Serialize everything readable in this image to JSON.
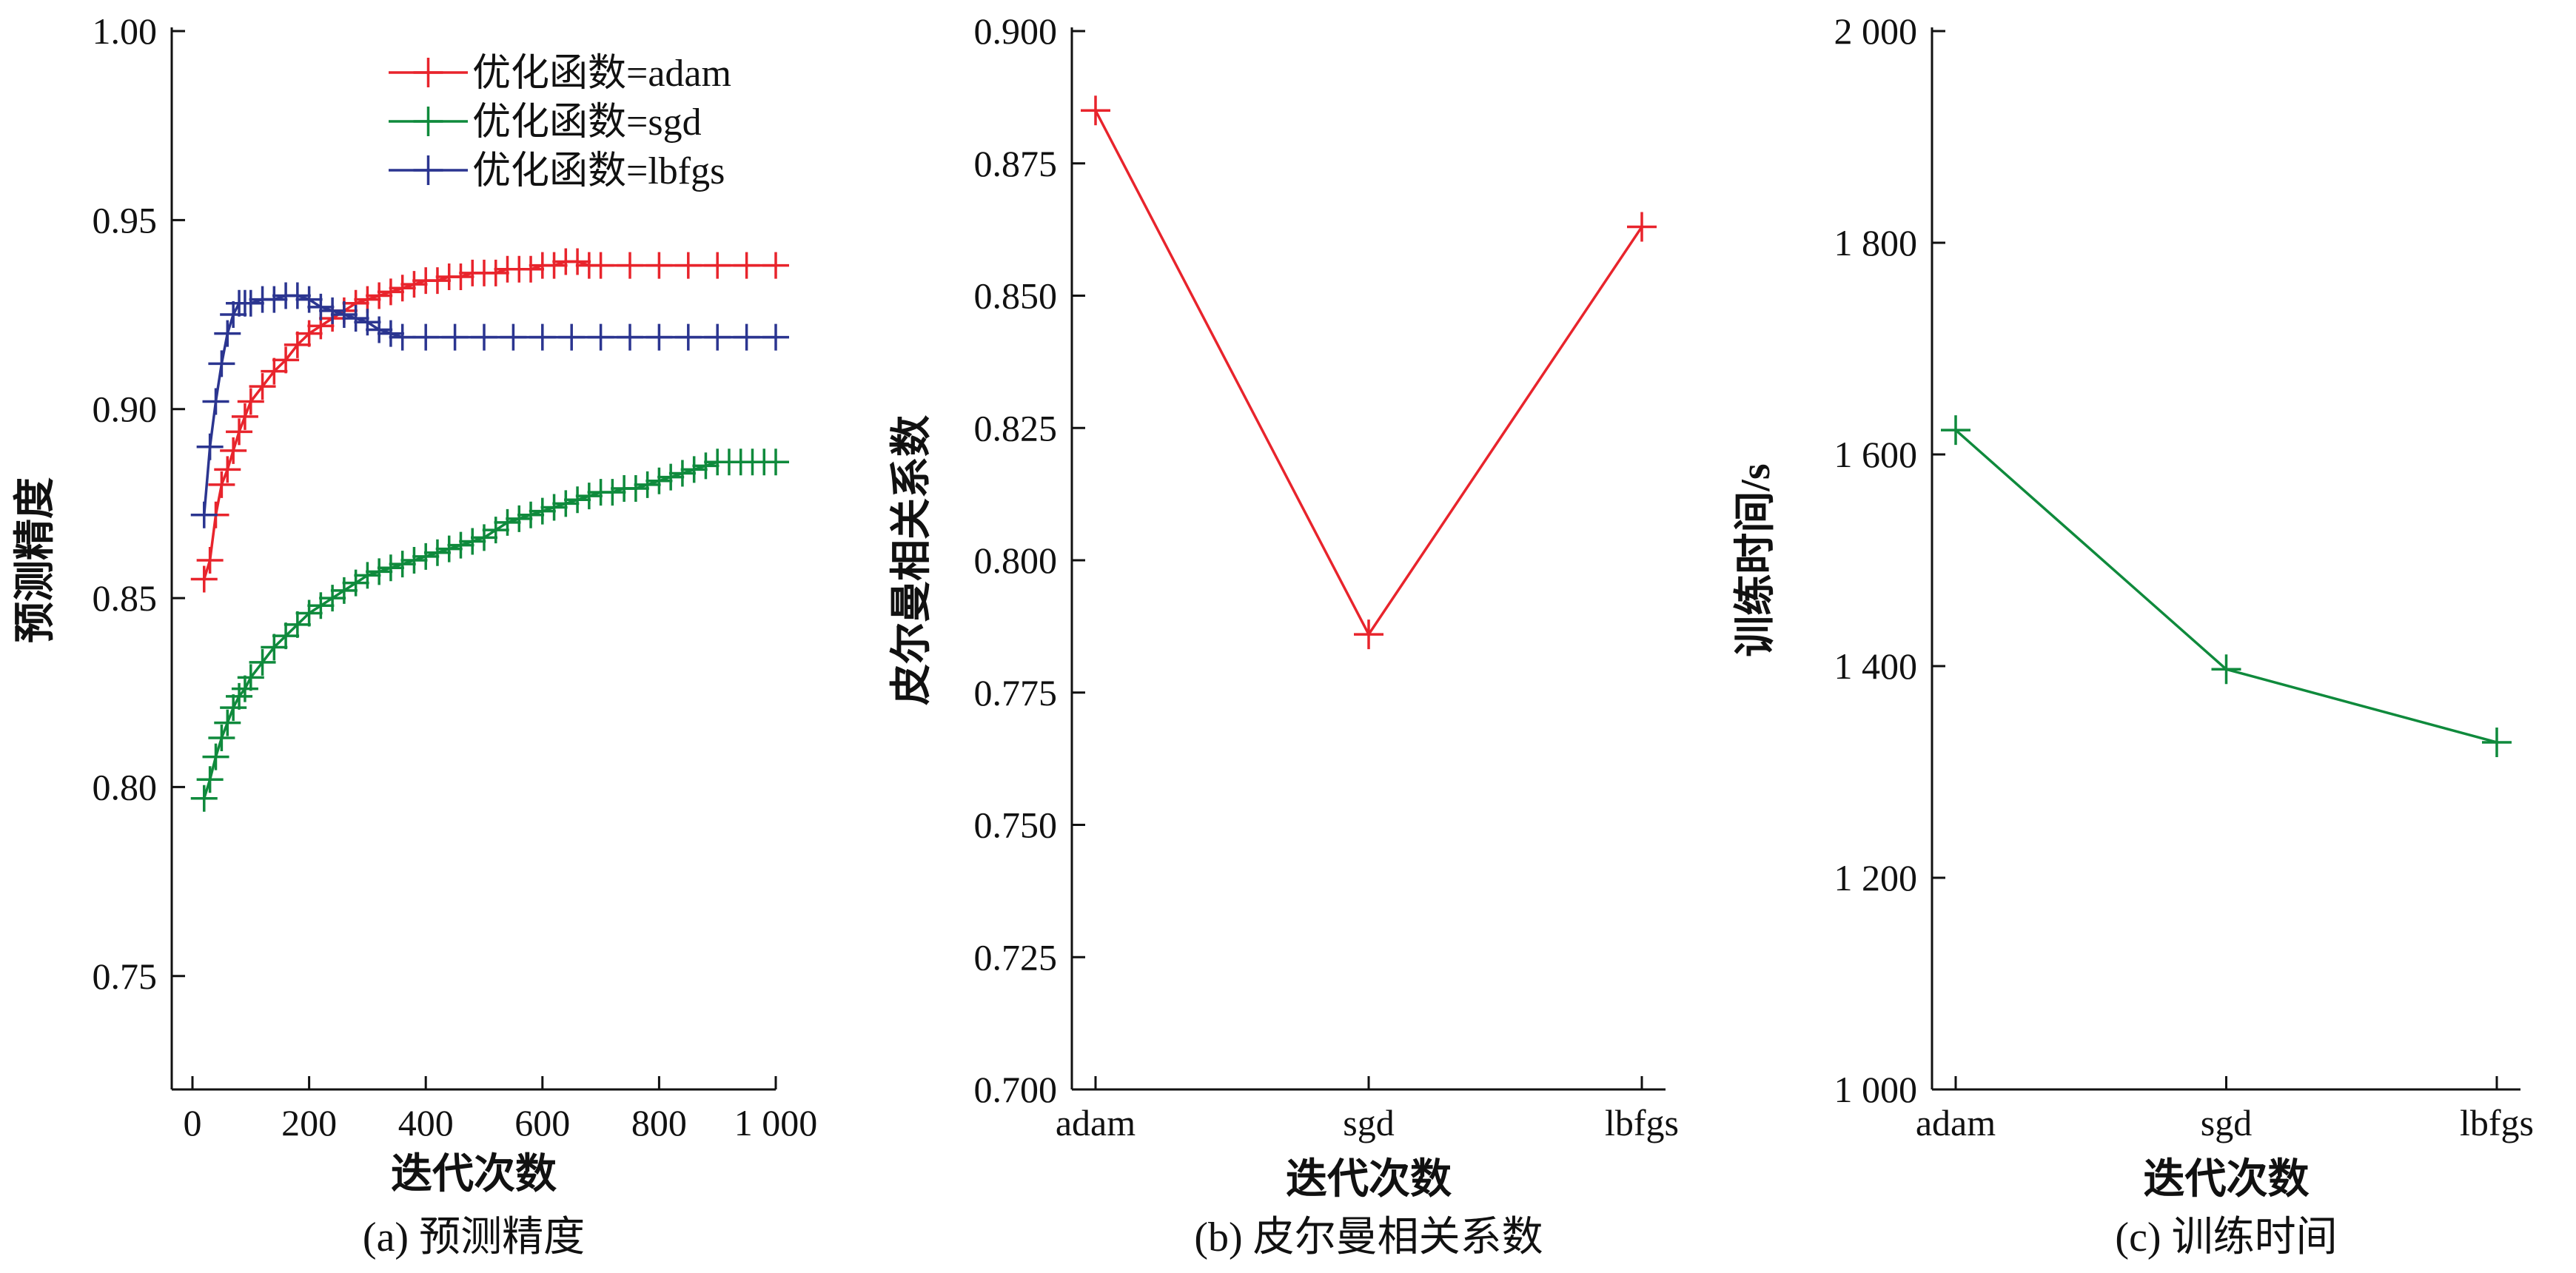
{
  "colors": {
    "adam": "#e8242c",
    "sgd": "#0f8a3c",
    "lbfgs": "#2b3590",
    "axis": "#111111"
  },
  "chart_data": [
    {
      "type": "line",
      "caption": "(a) 预测精度",
      "xlabel": "迭代次数",
      "ylabel": "预测精度",
      "xlim": [
        0,
        1000
      ],
      "ylim": [
        0.72,
        1.0
      ],
      "xticks": [
        0,
        200,
        400,
        600,
        800,
        1000
      ],
      "xtick_labels": [
        "0",
        "200",
        "400",
        "600",
        "800",
        "1 000"
      ],
      "yticks": [
        0.75,
        0.8,
        0.85,
        0.9,
        0.95,
        1.0
      ],
      "ytick_labels": [
        "0.75",
        "0.80",
        "0.85",
        "0.90",
        "0.95",
        "1.00"
      ],
      "legend_position": "top-right",
      "series": [
        {
          "name": "优化函数=adam",
          "color_key": "adam",
          "x": [
            20,
            30,
            40,
            50,
            60,
            70,
            80,
            90,
            100,
            120,
            140,
            160,
            180,
            200,
            220,
            240,
            260,
            280,
            300,
            320,
            340,
            360,
            380,
            400,
            420,
            440,
            460,
            480,
            500,
            520,
            540,
            560,
            580,
            600,
            620,
            640,
            660,
            680,
            700,
            750,
            800,
            850,
            900,
            950,
            1000
          ],
          "y": [
            0.855,
            0.86,
            0.872,
            0.88,
            0.884,
            0.889,
            0.894,
            0.898,
            0.902,
            0.906,
            0.91,
            0.913,
            0.917,
            0.92,
            0.922,
            0.924,
            0.926,
            0.928,
            0.929,
            0.93,
            0.931,
            0.932,
            0.933,
            0.934,
            0.934,
            0.935,
            0.935,
            0.936,
            0.936,
            0.936,
            0.937,
            0.937,
            0.937,
            0.938,
            0.938,
            0.939,
            0.939,
            0.938,
            0.938,
            0.938,
            0.938,
            0.938,
            0.938,
            0.938,
            0.938
          ]
        },
        {
          "name": "优化函数=sgd",
          "color_key": "sgd",
          "x": [
            20,
            30,
            40,
            50,
            60,
            70,
            80,
            90,
            100,
            120,
            140,
            160,
            180,
            200,
            220,
            240,
            260,
            280,
            300,
            320,
            340,
            360,
            380,
            400,
            420,
            440,
            460,
            480,
            500,
            520,
            540,
            560,
            580,
            600,
            620,
            640,
            660,
            680,
            700,
            720,
            740,
            760,
            780,
            800,
            820,
            840,
            860,
            880,
            900,
            920,
            940,
            960,
            980,
            1000
          ],
          "y": [
            0.797,
            0.802,
            0.808,
            0.813,
            0.817,
            0.821,
            0.824,
            0.826,
            0.829,
            0.833,
            0.837,
            0.84,
            0.843,
            0.846,
            0.848,
            0.85,
            0.852,
            0.854,
            0.856,
            0.857,
            0.858,
            0.859,
            0.86,
            0.861,
            0.862,
            0.863,
            0.864,
            0.865,
            0.866,
            0.868,
            0.87,
            0.871,
            0.872,
            0.873,
            0.874,
            0.875,
            0.876,
            0.877,
            0.878,
            0.878,
            0.879,
            0.879,
            0.88,
            0.881,
            0.882,
            0.883,
            0.884,
            0.885,
            0.886,
            0.886,
            0.886,
            0.886,
            0.886,
            0.886
          ]
        },
        {
          "name": "优化函数=lbfgs",
          "color_key": "lbfgs",
          "x": [
            20,
            30,
            40,
            50,
            60,
            70,
            80,
            90,
            100,
            120,
            140,
            160,
            180,
            200,
            220,
            240,
            260,
            280,
            300,
            320,
            340,
            360,
            400,
            450,
            500,
            550,
            600,
            650,
            700,
            750,
            800,
            850,
            900,
            950,
            1000
          ],
          "y": [
            0.872,
            0.89,
            0.902,
            0.912,
            0.92,
            0.925,
            0.928,
            0.928,
            0.928,
            0.929,
            0.929,
            0.93,
            0.93,
            0.929,
            0.927,
            0.926,
            0.925,
            0.924,
            0.923,
            0.921,
            0.92,
            0.919,
            0.919,
            0.919,
            0.919,
            0.919,
            0.919,
            0.919,
            0.919,
            0.919,
            0.919,
            0.919,
            0.919,
            0.919,
            0.919
          ]
        }
      ]
    },
    {
      "type": "line",
      "caption": "(b) 皮尔曼相关系数",
      "xlabel": "迭代次数",
      "ylabel": "皮尔曼相关系数",
      "categories": [
        "adam",
        "sgd",
        "lbfgs"
      ],
      "ylim": [
        0.7,
        0.9
      ],
      "yticks": [
        0.7,
        0.725,
        0.75,
        0.775,
        0.8,
        0.825,
        0.85,
        0.875,
        0.9
      ],
      "ytick_labels": [
        "0.700",
        "0.725",
        "0.750",
        "0.775",
        "0.800",
        "0.825",
        "0.850",
        "0.875",
        "0.900"
      ],
      "series": [
        {
          "color_key": "adam",
          "values": [
            0.885,
            0.786,
            0.863
          ]
        }
      ]
    },
    {
      "type": "line",
      "caption": "(c) 训练时间",
      "xlabel": "迭代次数",
      "ylabel": "训练时间/s",
      "categories": [
        "adam",
        "sgd",
        "lbfgs"
      ],
      "ylim": [
        1000,
        2000
      ],
      "yticks": [
        1000,
        1200,
        1400,
        1600,
        1800,
        2000
      ],
      "ytick_labels": [
        "1 000",
        "1 200",
        "1 400",
        "1 600",
        "1 800",
        "2 000"
      ],
      "series": [
        {
          "color_key": "sgd",
          "values": [
            1623,
            1397,
            1328
          ]
        }
      ]
    }
  ]
}
